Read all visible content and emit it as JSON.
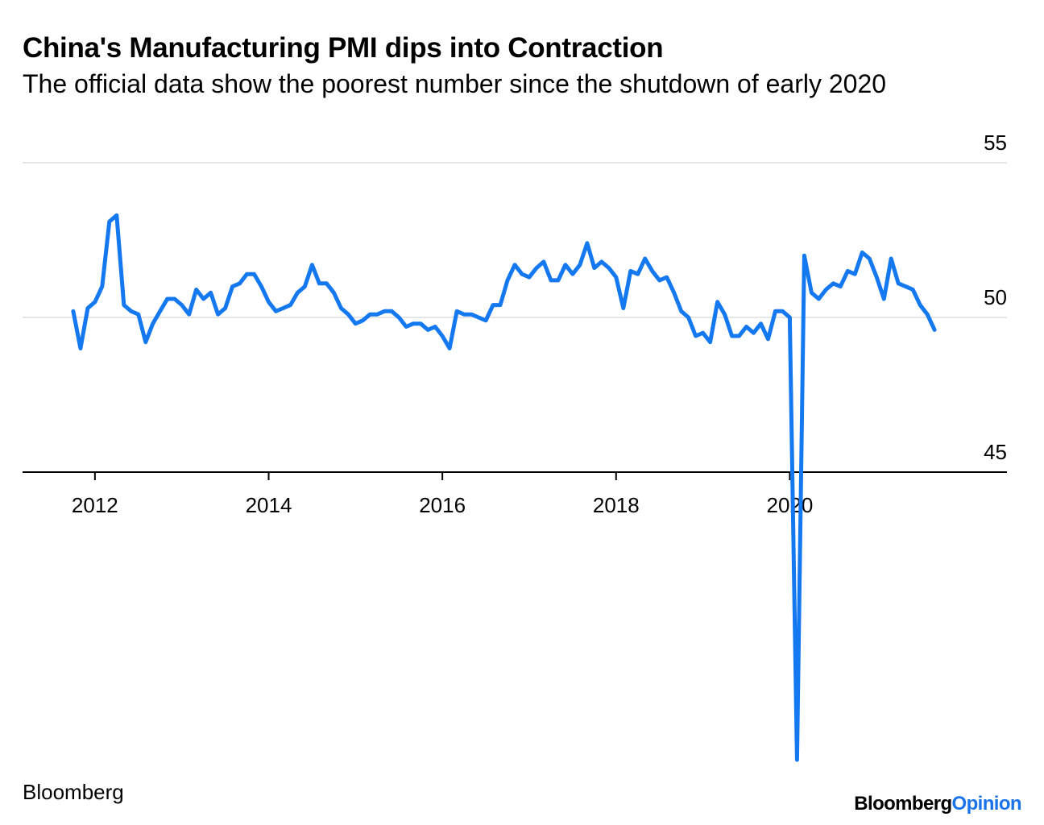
{
  "header": {
    "title": "China's Manufacturing PMI dips into Contraction",
    "subtitle": "The official data show the poorest number since the shutdown of early 2020"
  },
  "footer": {
    "source": "Bloomberg",
    "brand_part1": "Bloomberg",
    "brand_part2": "Opinion"
  },
  "colors": {
    "line": "#1478f0",
    "grid": "#e6e6e6",
    "axis": "#000000",
    "brand_accent": "#1a73e8"
  },
  "chart_data": {
    "type": "line",
    "title": "China's Manufacturing PMI dips into Contraction",
    "subtitle": "The official data show the poorest number since the shutdown of early 2020",
    "xlabel": "",
    "ylabel": "",
    "y_axis_side": "right",
    "ylim": [
      45,
      55
    ],
    "yticks": [
      55,
      50,
      45
    ],
    "xticks": [
      "2012",
      "2014",
      "2016",
      "2018",
      "2020"
    ],
    "xlim": [
      "2011-03",
      "2022-07"
    ],
    "grid": true,
    "series": [
      {
        "x": [
          "2011-10",
          "2011-11",
          "2011-12",
          "2012-01",
          "2012-02",
          "2012-03",
          "2012-04",
          "2012-05",
          "2012-06",
          "2012-07",
          "2012-08",
          "2012-09",
          "2012-10",
          "2012-11",
          "2012-12",
          "2013-01",
          "2013-02",
          "2013-03",
          "2013-04",
          "2013-05",
          "2013-06",
          "2013-07",
          "2013-08",
          "2013-09",
          "2013-10",
          "2013-11",
          "2013-12",
          "2014-01",
          "2014-02",
          "2014-03",
          "2014-04",
          "2014-05",
          "2014-06",
          "2014-07",
          "2014-08",
          "2014-09",
          "2014-10",
          "2014-11",
          "2014-12",
          "2015-01",
          "2015-02",
          "2015-03",
          "2015-04",
          "2015-05",
          "2015-06",
          "2015-07",
          "2015-08",
          "2015-09",
          "2015-10",
          "2015-11",
          "2015-12",
          "2016-01",
          "2016-02",
          "2016-03",
          "2016-04",
          "2016-05",
          "2016-06",
          "2016-07",
          "2016-08",
          "2016-09",
          "2016-10",
          "2016-11",
          "2016-12",
          "2017-01",
          "2017-02",
          "2017-03",
          "2017-04",
          "2017-05",
          "2017-06",
          "2017-07",
          "2017-08",
          "2017-09",
          "2017-10",
          "2017-11",
          "2017-12",
          "2018-01",
          "2018-02",
          "2018-03",
          "2018-04",
          "2018-05",
          "2018-06",
          "2018-07",
          "2018-08",
          "2018-09",
          "2018-10",
          "2018-11",
          "2018-12",
          "2019-01",
          "2019-02",
          "2019-03",
          "2019-04",
          "2019-05",
          "2019-06",
          "2019-07",
          "2019-08",
          "2019-09",
          "2019-10",
          "2019-11",
          "2019-12",
          "2020-01",
          "2020-02",
          "2020-03",
          "2020-04",
          "2020-05",
          "2020-06",
          "2020-07",
          "2020-08",
          "2020-09",
          "2020-10",
          "2020-11",
          "2020-12",
          "2021-01",
          "2021-02",
          "2021-03",
          "2021-04",
          "2021-05",
          "2021-06",
          "2021-07",
          "2021-08",
          "2021-09"
        ],
        "values": [
          50.2,
          49.0,
          50.3,
          50.5,
          51.0,
          53.1,
          53.3,
          50.4,
          50.2,
          50.1,
          49.2,
          49.8,
          50.2,
          50.6,
          50.6,
          50.4,
          50.1,
          50.9,
          50.6,
          50.8,
          50.1,
          50.3,
          51.0,
          51.1,
          51.4,
          51.4,
          51.0,
          50.5,
          50.2,
          50.3,
          50.4,
          50.8,
          51.0,
          51.7,
          51.1,
          51.1,
          50.8,
          50.3,
          50.1,
          49.8,
          49.9,
          50.1,
          50.1,
          50.2,
          50.2,
          50.0,
          49.7,
          49.8,
          49.8,
          49.6,
          49.7,
          49.4,
          49.0,
          50.2,
          50.1,
          50.1,
          50.0,
          49.9,
          50.4,
          50.4,
          51.2,
          51.7,
          51.4,
          51.3,
          51.6,
          51.8,
          51.2,
          51.2,
          51.7,
          51.4,
          51.7,
          52.4,
          51.6,
          51.8,
          51.6,
          51.3,
          50.3,
          51.5,
          51.4,
          51.9,
          51.5,
          51.2,
          51.3,
          50.8,
          50.2,
          50.0,
          49.4,
          49.5,
          49.2,
          50.5,
          50.1,
          49.4,
          49.4,
          49.7,
          49.5,
          49.8,
          49.3,
          50.2,
          50.2,
          50.0,
          35.7,
          52.0,
          50.8,
          50.6,
          50.9,
          51.1,
          51.0,
          51.5,
          51.4,
          52.1,
          51.9,
          51.3,
          50.6,
          51.9,
          51.1,
          51.0,
          50.9,
          50.4,
          50.1,
          49.6
        ]
      }
    ]
  }
}
